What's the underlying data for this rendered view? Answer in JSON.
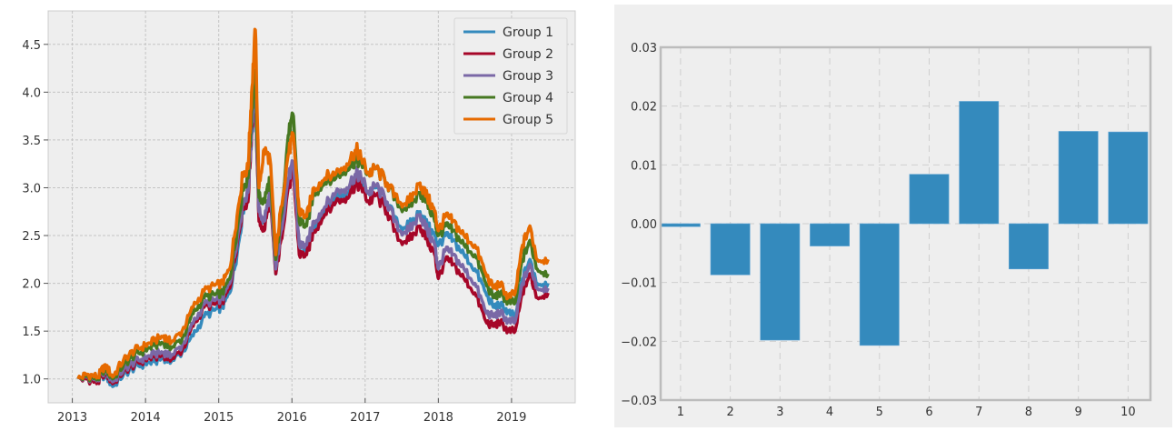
{
  "chart_data": [
    {
      "type": "line",
      "title": "",
      "xlabel": "",
      "ylabel": "",
      "xlim": [
        2012.67,
        2019.87
      ],
      "ylim": [
        0.75,
        4.85
      ],
      "xticks": [
        2013,
        2014,
        2015,
        2016,
        2017,
        2018,
        2019
      ],
      "xtick_labels": [
        "2013",
        "2014",
        "2015",
        "2016",
        "2017",
        "2018",
        "2019"
      ],
      "yticks": [
        1.0,
        1.5,
        2.0,
        2.5,
        3.0,
        3.5,
        4.0,
        4.5
      ],
      "ytick_labels": [
        "1.0",
        "1.5",
        "2.0",
        "2.5",
        "3.0",
        "3.5",
        "4.0",
        "4.5"
      ],
      "grid": true,
      "legend_position": "top-right",
      "x": [
        2013.08,
        2013.2,
        2013.35,
        2013.45,
        2013.55,
        2013.7,
        2013.85,
        2014.0,
        2014.12,
        2014.25,
        2014.35,
        2014.5,
        2014.65,
        2014.8,
        2014.95,
        2015.05,
        2015.15,
        2015.25,
        2015.33,
        2015.4,
        2015.45,
        2015.5,
        2015.55,
        2015.62,
        2015.7,
        2015.78,
        2015.85,
        2015.95,
        2016.02,
        2016.1,
        2016.2,
        2016.3,
        2016.45,
        2016.6,
        2016.75,
        2016.88,
        2016.95,
        2017.05,
        2017.15,
        2017.3,
        2017.45,
        2017.6,
        2017.75,
        2017.85,
        2017.95,
        2018.0,
        2018.1,
        2018.2,
        2018.35,
        2018.5,
        2018.65,
        2018.75,
        2018.85,
        2018.95,
        2019.05,
        2019.15,
        2019.25,
        2019.35,
        2019.5
      ],
      "series": [
        {
          "name": "Group 1",
          "color": "#348abd",
          "values": [
            1.0,
            1.0,
            0.98,
            1.05,
            0.92,
            1.05,
            1.12,
            1.16,
            1.18,
            1.22,
            1.18,
            1.28,
            1.45,
            1.65,
            1.72,
            1.75,
            1.9,
            2.3,
            2.75,
            2.9,
            3.55,
            3.95,
            2.7,
            2.65,
            2.95,
            2.1,
            2.5,
            3.05,
            3.2,
            2.4,
            2.35,
            2.6,
            2.75,
            2.9,
            2.95,
            3.1,
            3.05,
            2.95,
            3.0,
            2.85,
            2.6,
            2.6,
            2.75,
            2.6,
            2.5,
            2.4,
            2.5,
            2.45,
            2.3,
            2.15,
            1.9,
            1.75,
            1.78,
            1.7,
            1.65,
            2.05,
            2.25,
            2.0,
            2.0
          ]
        },
        {
          "name": "Group 2",
          "color": "#a60628",
          "values": [
            1.0,
            1.0,
            0.96,
            1.08,
            0.95,
            1.08,
            1.15,
            1.2,
            1.23,
            1.25,
            1.2,
            1.3,
            1.55,
            1.75,
            1.78,
            1.8,
            1.95,
            2.4,
            2.8,
            2.85,
            3.6,
            4.0,
            2.65,
            2.55,
            2.9,
            2.1,
            2.45,
            3.0,
            3.15,
            2.3,
            2.3,
            2.55,
            2.72,
            2.85,
            2.9,
            3.05,
            3.0,
            2.85,
            2.92,
            2.75,
            2.45,
            2.45,
            2.6,
            2.45,
            2.3,
            2.05,
            2.25,
            2.2,
            2.05,
            1.9,
            1.6,
            1.55,
            1.6,
            1.5,
            1.5,
            1.9,
            2.1,
            1.85,
            1.9
          ]
        },
        {
          "name": "Group 3",
          "color": "#7a68a6",
          "values": [
            1.0,
            1.02,
            0.99,
            1.1,
            0.97,
            1.1,
            1.18,
            1.22,
            1.26,
            1.28,
            1.24,
            1.35,
            1.58,
            1.78,
            1.82,
            1.84,
            2.0,
            2.45,
            2.85,
            2.95,
            3.65,
            4.05,
            2.75,
            2.65,
            2.95,
            2.15,
            2.55,
            3.1,
            3.25,
            2.4,
            2.4,
            2.65,
            2.8,
            2.95,
            3.0,
            3.15,
            3.1,
            2.95,
            3.02,
            2.85,
            2.55,
            2.55,
            2.72,
            2.55,
            2.4,
            2.15,
            2.35,
            2.3,
            2.15,
            2.0,
            1.7,
            1.65,
            1.7,
            1.6,
            1.6,
            2.0,
            2.2,
            1.95,
            1.95
          ]
        },
        {
          "name": "Group 4",
          "color": "#467821",
          "values": [
            1.0,
            1.03,
            1.0,
            1.12,
            1.0,
            1.15,
            1.25,
            1.3,
            1.35,
            1.38,
            1.32,
            1.42,
            1.68,
            1.85,
            1.88,
            1.9,
            2.05,
            2.55,
            3.0,
            3.1,
            3.8,
            4.2,
            2.9,
            2.85,
            3.1,
            2.25,
            2.7,
            3.55,
            3.75,
            2.65,
            2.6,
            2.95,
            3.05,
            3.1,
            3.2,
            3.3,
            3.25,
            3.15,
            3.2,
            3.05,
            2.8,
            2.8,
            2.95,
            2.85,
            2.65,
            2.5,
            2.6,
            2.55,
            2.4,
            2.3,
            2.0,
            1.85,
            1.9,
            1.8,
            1.8,
            2.25,
            2.45,
            2.15,
            2.1
          ]
        },
        {
          "name": "Group 5",
          "color": "#e66a00",
          "values": [
            1.0,
            1.05,
            1.02,
            1.15,
            1.02,
            1.2,
            1.3,
            1.35,
            1.4,
            1.45,
            1.38,
            1.5,
            1.75,
            1.92,
            1.98,
            2.0,
            2.15,
            2.7,
            3.15,
            3.2,
            4.0,
            4.65,
            3.0,
            3.4,
            3.3,
            2.3,
            2.8,
            3.35,
            3.55,
            2.75,
            2.7,
            3.0,
            3.1,
            3.15,
            3.25,
            3.4,
            3.3,
            3.15,
            3.2,
            3.05,
            2.85,
            2.85,
            3.05,
            2.9,
            2.75,
            2.55,
            2.7,
            2.65,
            2.5,
            2.4,
            2.1,
            1.95,
            2.0,
            1.85,
            1.9,
            2.4,
            2.6,
            2.25,
            2.25
          ]
        }
      ]
    },
    {
      "type": "bar",
      "title": "",
      "xlabel": "",
      "ylabel": "",
      "categories": [
        "1",
        "2",
        "3",
        "4",
        "5",
        "6",
        "7",
        "8",
        "9",
        "10"
      ],
      "values": [
        -0.0005,
        -0.0087,
        -0.0198,
        -0.0038,
        -0.0207,
        0.0084,
        0.0208,
        -0.0077,
        0.0157,
        0.0156
      ],
      "ylim": [
        -0.03,
        0.03
      ],
      "yticks": [
        -0.03,
        -0.02,
        -0.01,
        0.0,
        0.01,
        0.02,
        0.03
      ],
      "ytick_labels": [
        "−0.03",
        "−0.02",
        "−0.01",
        "0.00",
        "0.01",
        "0.02",
        "0.03"
      ],
      "bar_color": "#348abd",
      "grid": true
    }
  ]
}
